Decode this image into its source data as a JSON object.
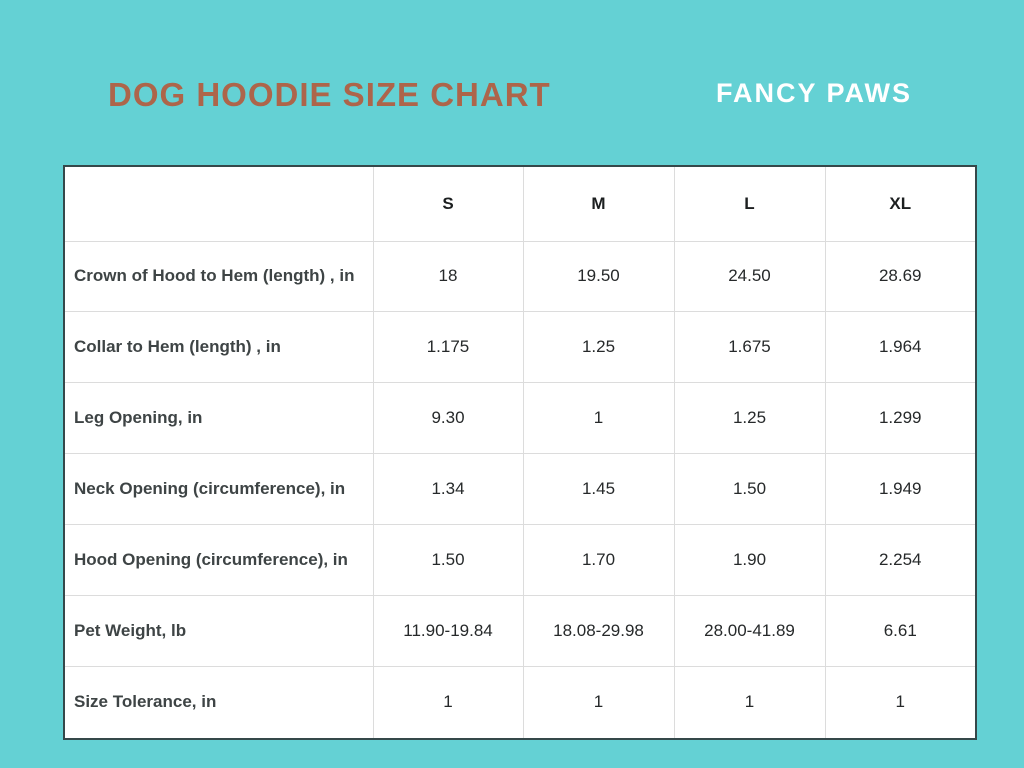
{
  "page": {
    "title": "DOG HOODIE SIZE CHART",
    "brand": "FANCY PAWS"
  },
  "colors": {
    "background": "#64D1D4",
    "title_text": "#AD654A",
    "brand_text": "#FFFFFF",
    "table_background": "#FFFFFF",
    "table_outer_border": "#35484A",
    "table_grid_lines": "#DCDCDC",
    "row_label_text": "#3E4445",
    "value_text": "#26292A"
  },
  "chart_data": {
    "type": "table",
    "title": "DOG HOODIE SIZE CHART",
    "columns": [
      "",
      "S",
      "M",
      "L",
      "XL"
    ],
    "rows": [
      {
        "label": "Crown of Hood to Hem (length) , in",
        "values": [
          "18",
          "19.50",
          "24.50",
          "28.69"
        ]
      },
      {
        "label": "Collar to Hem (length) , in",
        "values": [
          "1.175",
          "1.25",
          "1.675",
          "1.964"
        ]
      },
      {
        "label": "Leg Opening, in",
        "values": [
          "9.30",
          "1",
          "1.25",
          "1.299"
        ]
      },
      {
        "label": "Neck Opening (circumference), in",
        "values": [
          "1.34",
          "1.45",
          "1.50",
          "1.949"
        ]
      },
      {
        "label": "Hood Opening (circumference), in",
        "values": [
          "1.50",
          "1.70",
          "1.90",
          "2.254"
        ]
      },
      {
        "label": "Pet Weight, lb",
        "values": [
          "11.90-19.84",
          "18.08-29.98",
          "28.00-41.89",
          "6.61"
        ]
      },
      {
        "label": "Size Tolerance, in",
        "values": [
          "1",
          "1",
          "1",
          "1"
        ]
      }
    ]
  }
}
